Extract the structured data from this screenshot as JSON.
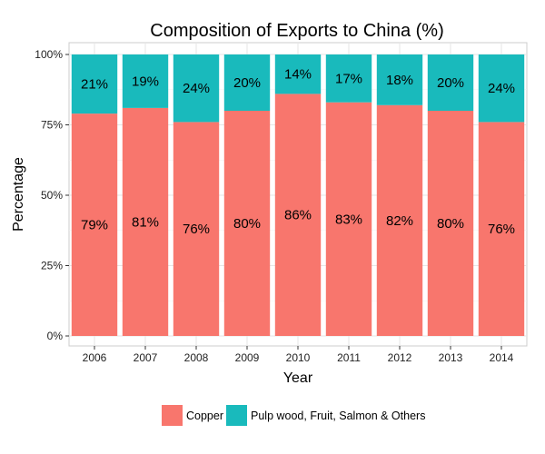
{
  "chart_data": {
    "type": "bar",
    "stacked": true,
    "title": "Composition of Exports to China (%)",
    "xlabel": "Year",
    "ylabel": "Percentage",
    "ylim": [
      0,
      100
    ],
    "yticks": [
      0,
      25,
      50,
      75,
      100
    ],
    "ytick_labels": [
      "0%",
      "25%",
      "50%",
      "75%",
      "100%"
    ],
    "categories": [
      "2006",
      "2007",
      "2008",
      "2009",
      "2010",
      "2011",
      "2012",
      "2013",
      "2014"
    ],
    "series": [
      {
        "name": "Copper",
        "color": "#F8766D",
        "values": [
          79,
          81,
          76,
          80,
          86,
          83,
          82,
          80,
          76
        ],
        "labels": [
          "79%",
          "81%",
          "76%",
          "80%",
          "86%",
          "83%",
          "82%",
          "80%",
          "76%"
        ]
      },
      {
        "name": "Pulp wood, Fruit, Salmon & Others",
        "color": "#19BABC",
        "values": [
          21,
          19,
          24,
          20,
          14,
          17,
          18,
          20,
          24
        ],
        "labels": [
          "21%",
          "19%",
          "24%",
          "20%",
          "14%",
          "17%",
          "18%",
          "20%",
          "24%"
        ]
      }
    ],
    "grid": true,
    "legend_position": "bottom"
  }
}
